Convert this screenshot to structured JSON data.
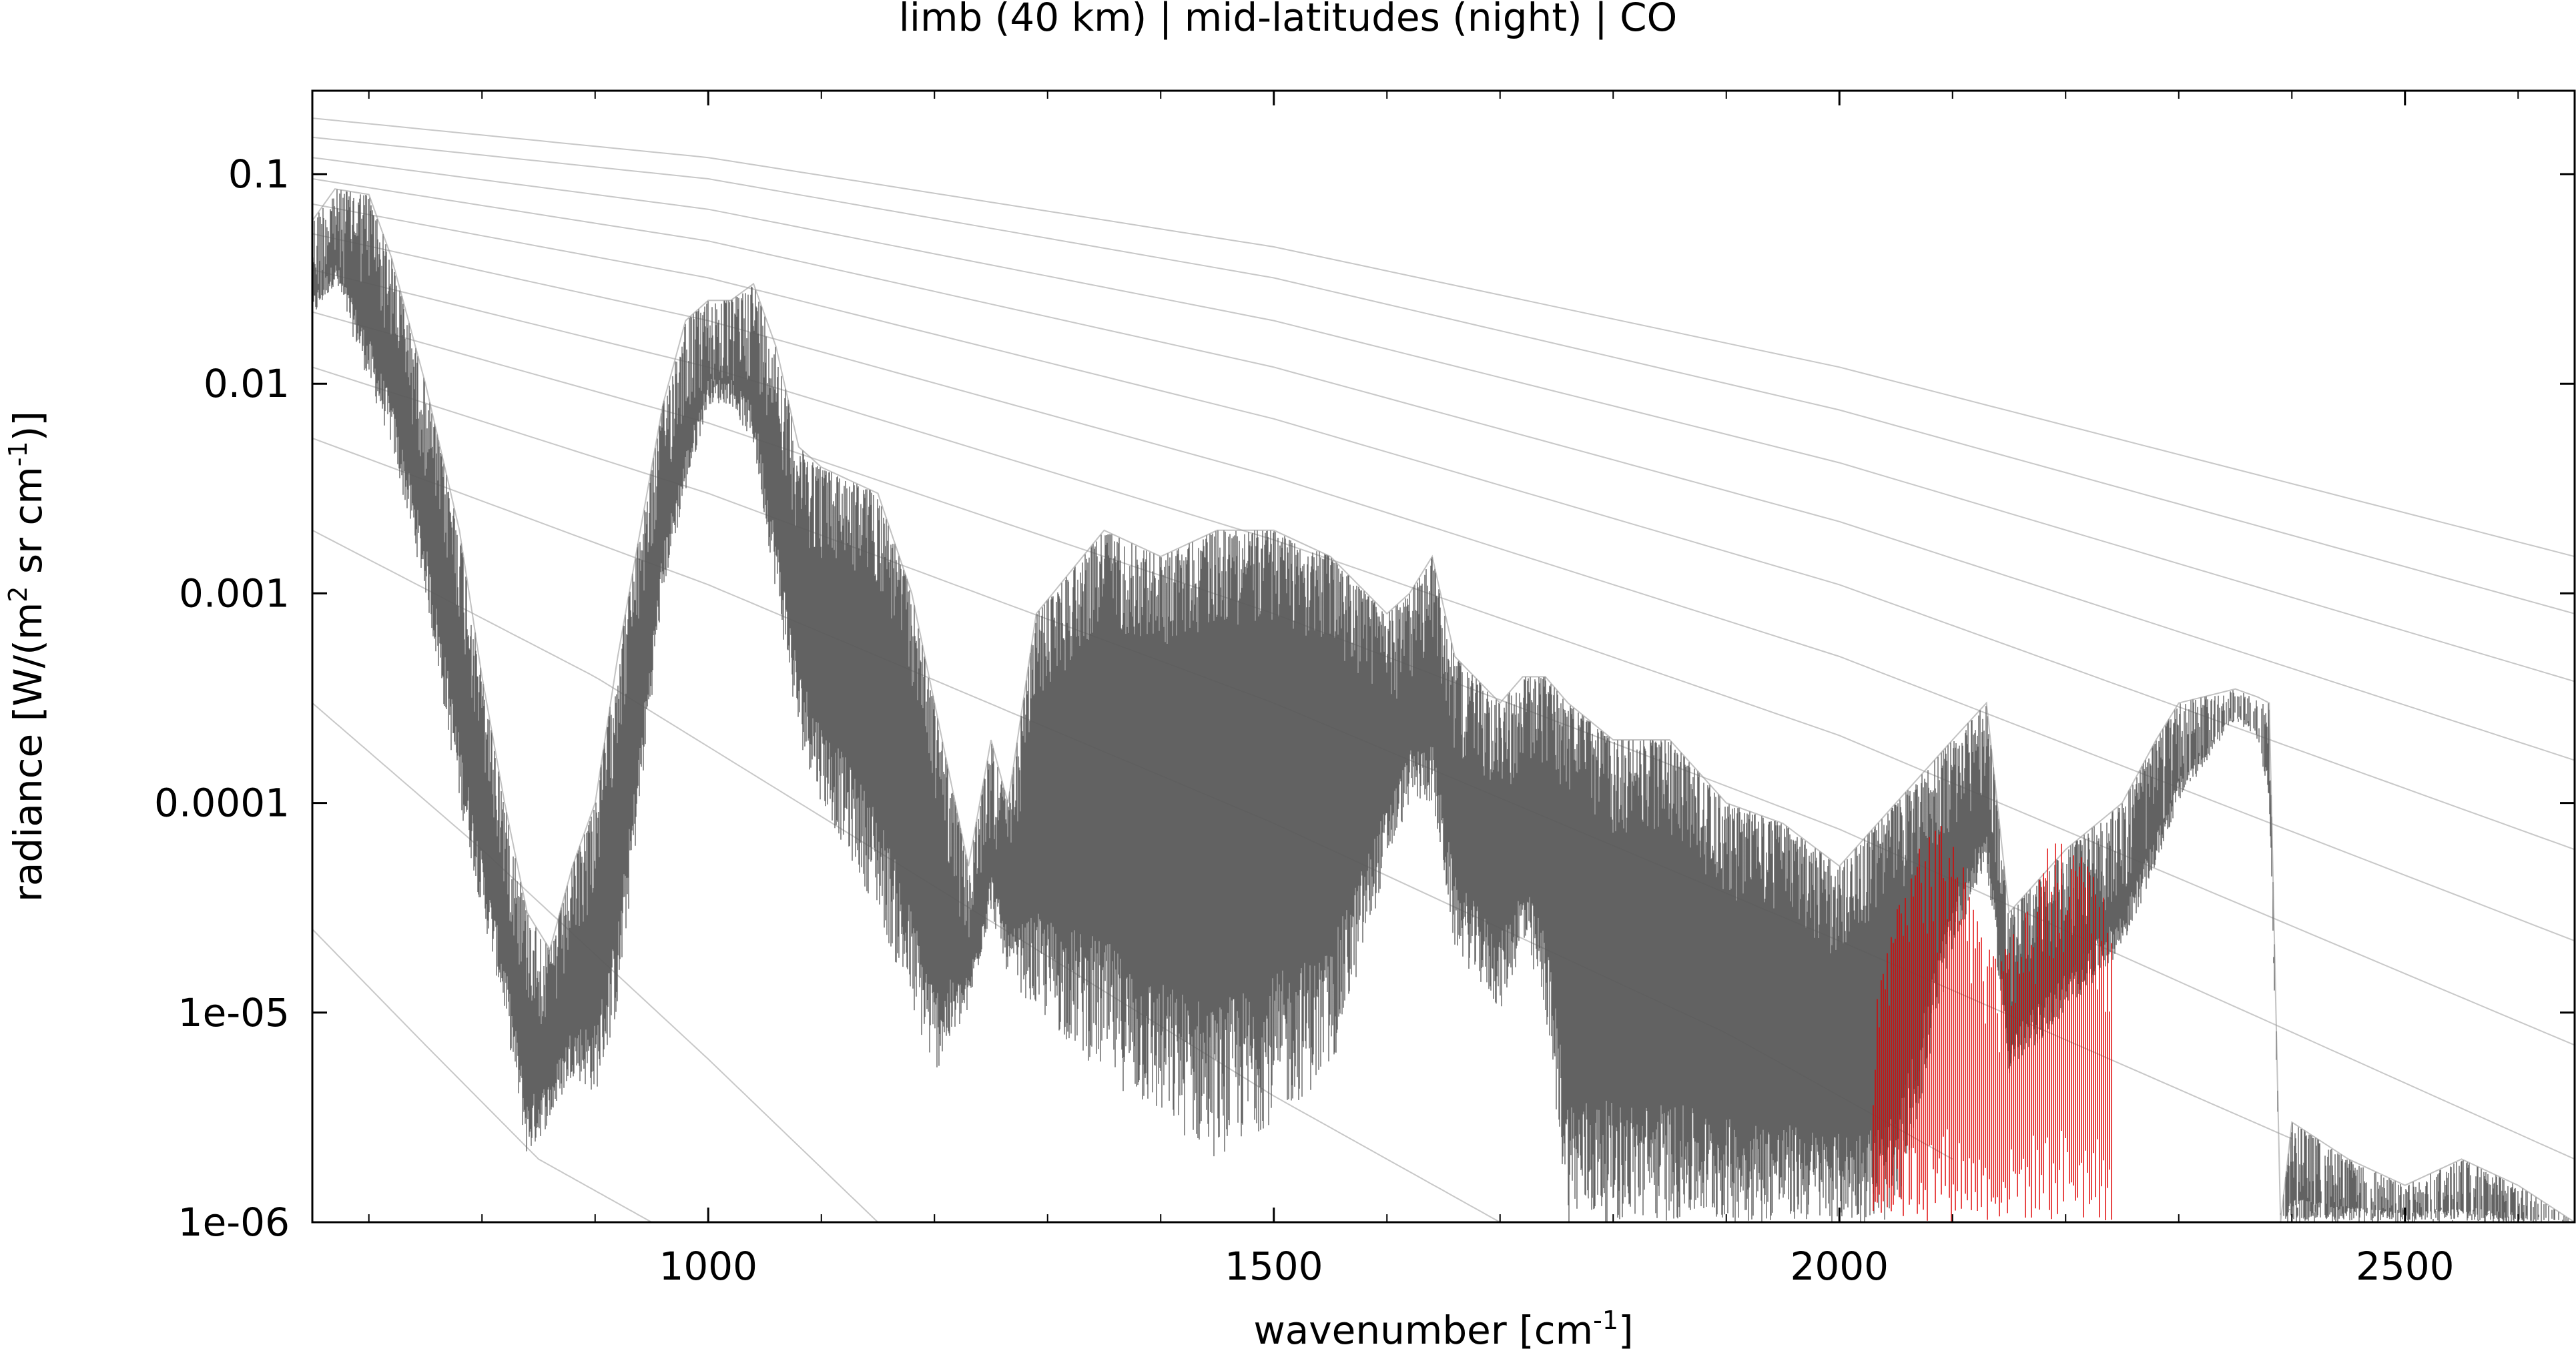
{
  "chart_data": {
    "type": "line",
    "title": "limb (40 km) | mid-latitudes (night) | CO",
    "xlabel": {
      "text": "wavenumber [cm",
      "sup": "-1",
      "tail": "]"
    },
    "ylabel": {
      "p1": "radiance [W/(m",
      "sup1": "2",
      "p2": " sr cm",
      "sup2": "-1",
      "p3": ")]"
    },
    "x_range": [
      650,
      2650
    ],
    "y_range": [
      1e-06,
      0.25
    ],
    "y_scale": "log",
    "x_ticks": [
      {
        "value": 1000,
        "label": "1000"
      },
      {
        "value": 1500,
        "label": "1500"
      },
      {
        "value": 2000,
        "label": "2000"
      },
      {
        "value": 2500,
        "label": "2500"
      }
    ],
    "y_ticks": [
      {
        "value": 0.1,
        "label": "0.1"
      },
      {
        "value": 0.01,
        "label": "0.01"
      },
      {
        "value": 0.001,
        "label": "0.001"
      },
      {
        "value": 0.0001,
        "label": "0.0001"
      },
      {
        "value": 1e-05,
        "label": "1e-05"
      },
      {
        "value": 1e-06,
        "label": "1e-06"
      }
    ],
    "grid": false,
    "legend": "none",
    "series": [
      {
        "role": "total spectrum (lines)",
        "color": "#5a5a5a",
        "x": [
          650,
          670,
          700,
          720,
          750,
          780,
          800,
          820,
          840,
          860,
          880,
          900,
          920,
          940,
          960,
          980,
          1000,
          1020,
          1040,
          1060,
          1080,
          1100,
          1150,
          1180,
          1200,
          1230,
          1250,
          1265,
          1290,
          1350,
          1400,
          1450,
          1500,
          1550,
          1600,
          1620,
          1640,
          1660,
          1700,
          1720,
          1740,
          1760,
          1800,
          1850,
          1900,
          1950,
          2000,
          2050,
          2100,
          2130,
          2150,
          2200,
          2250,
          2280,
          2300,
          2350,
          2370,
          2380,
          2390,
          2400,
          2450,
          2500,
          2550,
          2600,
          2650
        ],
        "y_upper": [
          0.06,
          0.085,
          0.08,
          0.04,
          0.01,
          0.002,
          0.0004,
          0.0001,
          3e-05,
          2e-05,
          5e-05,
          0.0001,
          0.0005,
          0.002,
          0.008,
          0.02,
          0.025,
          0.025,
          0.03,
          0.015,
          0.005,
          0.004,
          0.003,
          0.001,
          0.0003,
          5e-05,
          0.0002,
          0.0001,
          0.0008,
          0.002,
          0.0015,
          0.002,
          0.002,
          0.0015,
          0.0008,
          0.001,
          0.0015,
          0.0005,
          0.0003,
          0.0004,
          0.0004,
          0.0003,
          0.0002,
          0.0002,
          0.0001,
          8e-05,
          5e-05,
          0.0001,
          0.0002,
          0.0003,
          3e-05,
          6e-05,
          0.0001,
          0.0002,
          0.0003,
          0.00035,
          0.00032,
          0.0003,
          1e-06,
          3e-06,
          2e-06,
          1.5e-06,
          2e-06,
          1.5e-06,
          1e-06
        ],
        "y_lower": [
          0.02,
          0.03,
          0.01,
          0.005,
          0.001,
          0.0001,
          3e-05,
          1e-05,
          2e-06,
          3e-06,
          5e-06,
          4e-06,
          1e-05,
          0.0001,
          0.001,
          0.003,
          0.008,
          0.008,
          0.005,
          0.001,
          0.0002,
          0.0001,
          3e-05,
          1e-05,
          5e-06,
          1e-05,
          3e-05,
          1.5e-05,
          1e-05,
          5e-06,
          3e-06,
          2e-06,
          3e-06,
          5e-06,
          5e-05,
          0.0001,
          0.0001,
          2e-05,
          1e-05,
          2e-05,
          1e-05,
          1e-06,
          1e-06,
          1e-06,
          1e-06,
          1e-06,
          1e-06,
          1e-06,
          2e-05,
          5e-05,
          5e-06,
          1e-05,
          2e-05,
          5e-05,
          0.0001,
          0.00025,
          0.0002,
          0.0001,
          1e-06,
          1e-06,
          1e-06,
          1e-06,
          1e-06,
          1e-06,
          1e-06
        ]
      },
      {
        "role": "CO band",
        "color": "#e00000",
        "x": [
          2030,
          2050,
          2070,
          2090,
          2110,
          2130,
          2145,
          2160,
          2180,
          2200,
          2220,
          2240
        ],
        "y_upper": [
          1e-05,
          3e-05,
          6e-05,
          8e-05,
          5e-05,
          2e-05,
          2e-05,
          4e-05,
          6e-05,
          7e-05,
          5e-05,
          3e-05
        ],
        "y_lower": [
          1e-06,
          1e-06,
          1e-06,
          1e-06,
          1e-06,
          1e-06,
          1e-06,
          1e-06,
          1e-06,
          1e-06,
          1e-06,
          1e-06
        ]
      }
    ],
    "reference_curves": [
      {
        "color": "#c8c8c8",
        "x": [
          650,
          1000,
          1500,
          2000,
          2650
        ],
        "y": [
          0.185,
          0.12,
          0.045,
          0.012,
          0.0015
        ]
      },
      {
        "color": "#c8c8c8",
        "x": [
          650,
          1000,
          1500,
          2000,
          2650
        ],
        "y": [
          0.15,
          0.095,
          0.032,
          0.0075,
          0.0008
        ]
      },
      {
        "color": "#c8c8c8",
        "x": [
          650,
          1000,
          1500,
          2000,
          2650
        ],
        "y": [
          0.12,
          0.068,
          0.02,
          0.0042,
          0.00038
        ]
      },
      {
        "color": "#c8c8c8",
        "x": [
          650,
          1000,
          1500,
          2000,
          2650
        ],
        "y": [
          0.095,
          0.048,
          0.012,
          0.0022,
          0.00016
        ]
      },
      {
        "color": "#c8c8c8",
        "x": [
          650,
          1000,
          1500,
          2000,
          2650
        ],
        "y": [
          0.072,
          0.032,
          0.0068,
          0.0011,
          6e-05
        ]
      },
      {
        "color": "#c8c8c8",
        "x": [
          650,
          1000,
          1500,
          2000,
          2650
        ],
        "y": [
          0.052,
          0.02,
          0.0036,
          0.0005,
          2.2e-05
        ]
      },
      {
        "color": "#c8c8c8",
        "x": [
          650,
          1000,
          1500,
          2000,
          2650
        ],
        "y": [
          0.035,
          0.012,
          0.0018,
          0.00021,
          7e-06
        ]
      },
      {
        "color": "#c8c8c8",
        "x": [
          650,
          1000,
          1500,
          2000,
          2650
        ],
        "y": [
          0.022,
          0.0065,
          0.0008,
          7.5e-05,
          2e-06
        ]
      },
      {
        "color": "#c8c8c8",
        "x": [
          650,
          1000,
          1500,
          2000,
          2400
        ],
        "y": [
          0.012,
          0.003,
          0.0003,
          2.2e-05,
          2.5e-06
        ]
      },
      {
        "color": "#c8c8c8",
        "x": [
          650,
          1000,
          1500,
          1900,
          2100
        ],
        "y": [
          0.0055,
          0.0011,
          8e-05,
          8e-06,
          2e-06
        ]
      },
      {
        "color": "#c8c8c8",
        "x": [
          650,
          900,
          1200,
          1500,
          1700
        ],
        "y": [
          0.002,
          0.0004,
          4e-05,
          4e-06,
          1e-06
        ]
      },
      {
        "color": "#c8c8c8",
        "x": [
          650,
          800,
          1000,
          1150
        ],
        "y": [
          0.0003,
          6e-05,
          6e-06,
          1e-06
        ]
      },
      {
        "color": "#c8c8c8",
        "x": [
          650,
          750,
          850,
          950
        ],
        "y": [
          2.5e-05,
          7e-06,
          2e-06,
          1e-06
        ]
      }
    ]
  }
}
